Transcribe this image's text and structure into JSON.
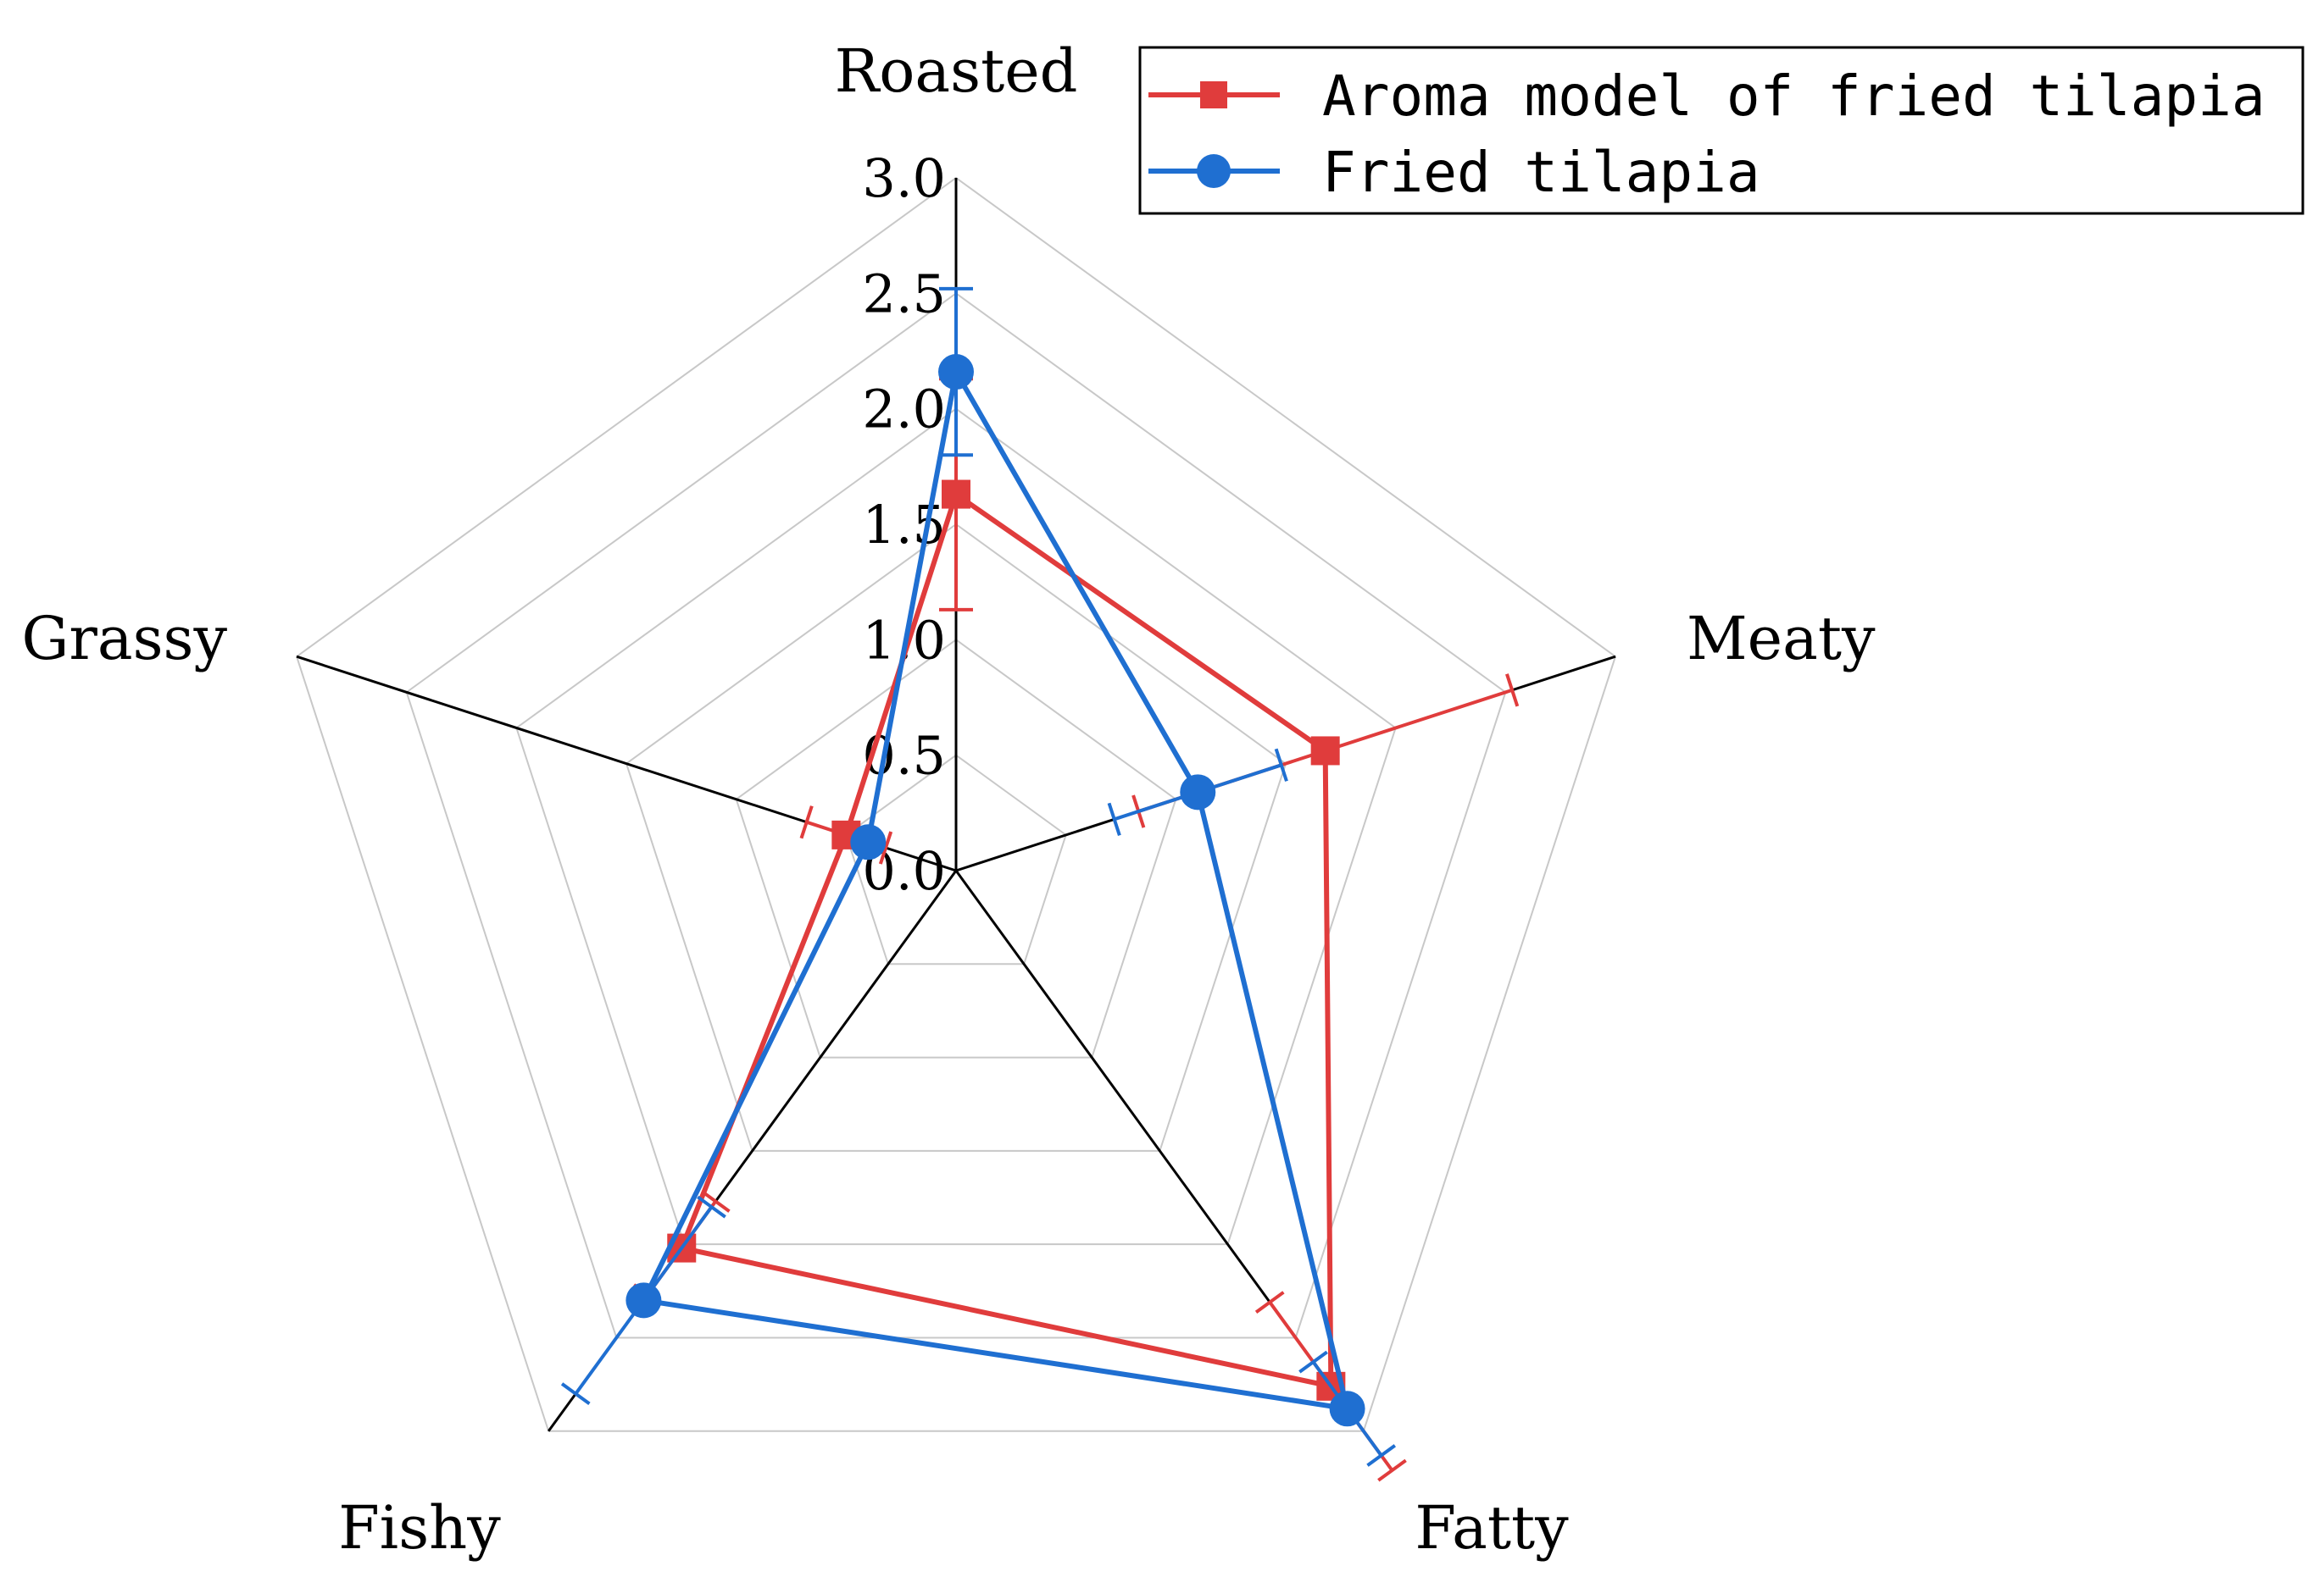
{
  "chart_data": {
    "type": "radar",
    "categories": [
      "Roasted",
      "Meaty",
      "Fatty",
      "Fishy",
      "Grassy"
    ],
    "rlim": [
      0.0,
      3.0
    ],
    "ticks": [
      "0.0",
      "0.5",
      "1.0",
      "1.5",
      "2.0",
      "2.5",
      "3.0"
    ],
    "grid": true,
    "legend_position": "top-right",
    "series": [
      {
        "name": "Aroma model of fried tilapia",
        "color": "#e03c3c",
        "marker": "square",
        "values": [
          1.63,
          1.68,
          2.76,
          2.02,
          0.5
        ],
        "errors": [
          0.5,
          0.85,
          0.45,
          0.25,
          0.18
        ]
      },
      {
        "name": "Fried tilapia",
        "color": "#1f6fd1",
        "marker": "circle",
        "values": [
          2.16,
          1.1,
          2.88,
          2.3,
          0.4
        ],
        "errors": [
          0.36,
          0.38,
          0.25,
          0.5,
          0.0
        ]
      }
    ]
  }
}
